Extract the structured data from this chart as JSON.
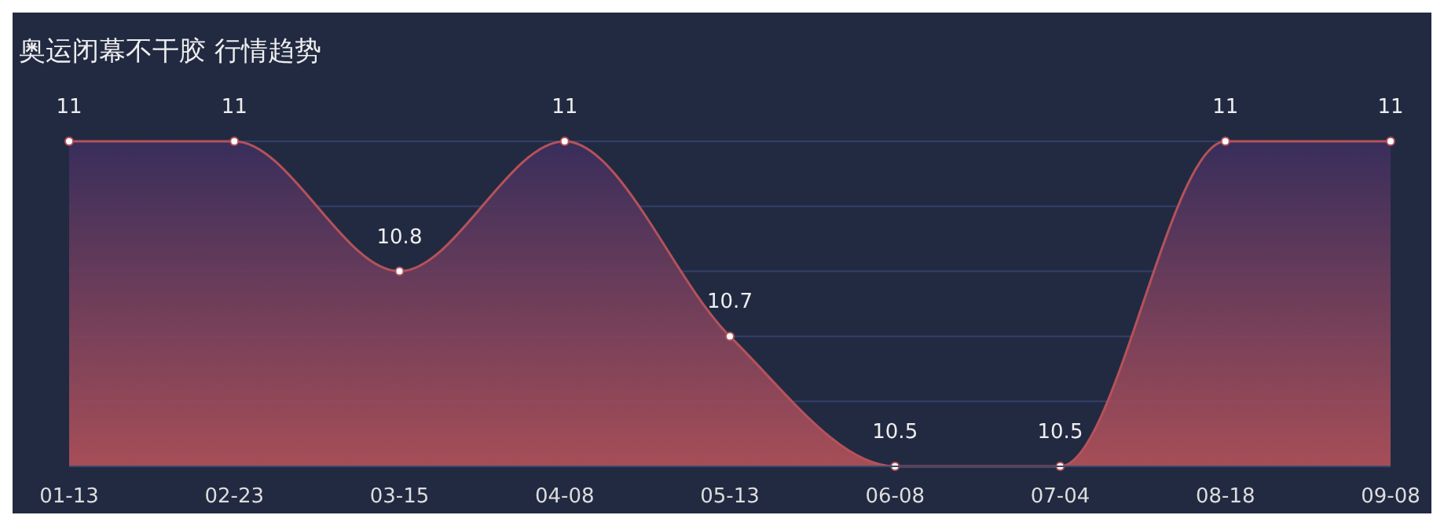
{
  "chart_data": {
    "type": "area",
    "title": "奥运闭幕不干胶 行情趋势",
    "categories": [
      "01-13",
      "02-23",
      "03-15",
      "04-08",
      "05-13",
      "06-08",
      "07-04",
      "08-18",
      "09-08"
    ],
    "series": [
      {
        "color": "#b5525a",
        "values": [
          11,
          11,
          10.8,
          11,
          10.7,
          10.5,
          10.5,
          11,
          11
        ]
      }
    ],
    "ylim": [
      10.5,
      11
    ],
    "yticks": [
      {
        "value": 10.6,
        "label": null
      },
      {
        "value": 10.7,
        "label": null
      },
      {
        "value": 10.8,
        "label": null
      },
      {
        "value": 10.9,
        "label": null
      },
      {
        "value": 11,
        "label": null
      }
    ],
    "grid": "y",
    "tick_labels": "x",
    "data_labels": true,
    "marker": "circle"
  }
}
